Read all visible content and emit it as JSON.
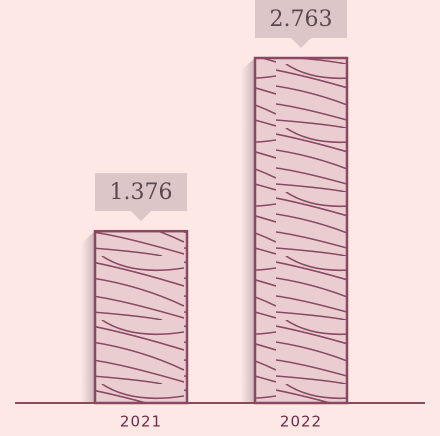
{
  "chart_data": {
    "type": "bar",
    "categories": [
      "2021",
      "2022"
    ],
    "values": [
      1.376,
      2.763
    ],
    "color": "#e9cdd0",
    "stroke": "#8a4863"
  }
}
